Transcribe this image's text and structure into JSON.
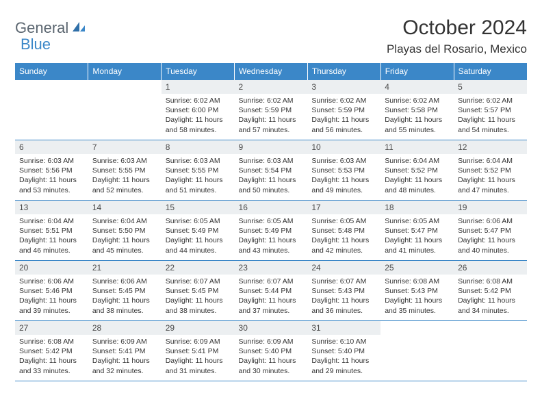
{
  "brand": {
    "part1": "General",
    "part2": "Blue",
    "color_dark": "#5b6670",
    "color_blue": "#3b87c8"
  },
  "title": "October 2024",
  "location": "Playas del Rosario, Mexico",
  "header_bg": "#3b87c8",
  "header_fg": "#ffffff",
  "daynum_bg": "#eceff1",
  "border_color": "#3b87c8",
  "columns": [
    "Sunday",
    "Monday",
    "Tuesday",
    "Wednesday",
    "Thursday",
    "Friday",
    "Saturday"
  ],
  "weeks": [
    [
      null,
      null,
      {
        "n": "1",
        "sr": "6:02 AM",
        "ss": "6:00 PM",
        "dl": "11 hours and 58 minutes."
      },
      {
        "n": "2",
        "sr": "6:02 AM",
        "ss": "5:59 PM",
        "dl": "11 hours and 57 minutes."
      },
      {
        "n": "3",
        "sr": "6:02 AM",
        "ss": "5:59 PM",
        "dl": "11 hours and 56 minutes."
      },
      {
        "n": "4",
        "sr": "6:02 AM",
        "ss": "5:58 PM",
        "dl": "11 hours and 55 minutes."
      },
      {
        "n": "5",
        "sr": "6:02 AM",
        "ss": "5:57 PM",
        "dl": "11 hours and 54 minutes."
      }
    ],
    [
      {
        "n": "6",
        "sr": "6:03 AM",
        "ss": "5:56 PM",
        "dl": "11 hours and 53 minutes."
      },
      {
        "n": "7",
        "sr": "6:03 AM",
        "ss": "5:55 PM",
        "dl": "11 hours and 52 minutes."
      },
      {
        "n": "8",
        "sr": "6:03 AM",
        "ss": "5:55 PM",
        "dl": "11 hours and 51 minutes."
      },
      {
        "n": "9",
        "sr": "6:03 AM",
        "ss": "5:54 PM",
        "dl": "11 hours and 50 minutes."
      },
      {
        "n": "10",
        "sr": "6:03 AM",
        "ss": "5:53 PM",
        "dl": "11 hours and 49 minutes."
      },
      {
        "n": "11",
        "sr": "6:04 AM",
        "ss": "5:52 PM",
        "dl": "11 hours and 48 minutes."
      },
      {
        "n": "12",
        "sr": "6:04 AM",
        "ss": "5:52 PM",
        "dl": "11 hours and 47 minutes."
      }
    ],
    [
      {
        "n": "13",
        "sr": "6:04 AM",
        "ss": "5:51 PM",
        "dl": "11 hours and 46 minutes."
      },
      {
        "n": "14",
        "sr": "6:04 AM",
        "ss": "5:50 PM",
        "dl": "11 hours and 45 minutes."
      },
      {
        "n": "15",
        "sr": "6:05 AM",
        "ss": "5:49 PM",
        "dl": "11 hours and 44 minutes."
      },
      {
        "n": "16",
        "sr": "6:05 AM",
        "ss": "5:49 PM",
        "dl": "11 hours and 43 minutes."
      },
      {
        "n": "17",
        "sr": "6:05 AM",
        "ss": "5:48 PM",
        "dl": "11 hours and 42 minutes."
      },
      {
        "n": "18",
        "sr": "6:05 AM",
        "ss": "5:47 PM",
        "dl": "11 hours and 41 minutes."
      },
      {
        "n": "19",
        "sr": "6:06 AM",
        "ss": "5:47 PM",
        "dl": "11 hours and 40 minutes."
      }
    ],
    [
      {
        "n": "20",
        "sr": "6:06 AM",
        "ss": "5:46 PM",
        "dl": "11 hours and 39 minutes."
      },
      {
        "n": "21",
        "sr": "6:06 AM",
        "ss": "5:45 PM",
        "dl": "11 hours and 38 minutes."
      },
      {
        "n": "22",
        "sr": "6:07 AM",
        "ss": "5:45 PM",
        "dl": "11 hours and 38 minutes."
      },
      {
        "n": "23",
        "sr": "6:07 AM",
        "ss": "5:44 PM",
        "dl": "11 hours and 37 minutes."
      },
      {
        "n": "24",
        "sr": "6:07 AM",
        "ss": "5:43 PM",
        "dl": "11 hours and 36 minutes."
      },
      {
        "n": "25",
        "sr": "6:08 AM",
        "ss": "5:43 PM",
        "dl": "11 hours and 35 minutes."
      },
      {
        "n": "26",
        "sr": "6:08 AM",
        "ss": "5:42 PM",
        "dl": "11 hours and 34 minutes."
      }
    ],
    [
      {
        "n": "27",
        "sr": "6:08 AM",
        "ss": "5:42 PM",
        "dl": "11 hours and 33 minutes."
      },
      {
        "n": "28",
        "sr": "6:09 AM",
        "ss": "5:41 PM",
        "dl": "11 hours and 32 minutes."
      },
      {
        "n": "29",
        "sr": "6:09 AM",
        "ss": "5:41 PM",
        "dl": "11 hours and 31 minutes."
      },
      {
        "n": "30",
        "sr": "6:09 AM",
        "ss": "5:40 PM",
        "dl": "11 hours and 30 minutes."
      },
      {
        "n": "31",
        "sr": "6:10 AM",
        "ss": "5:40 PM",
        "dl": "11 hours and 29 minutes."
      },
      null,
      null
    ]
  ]
}
